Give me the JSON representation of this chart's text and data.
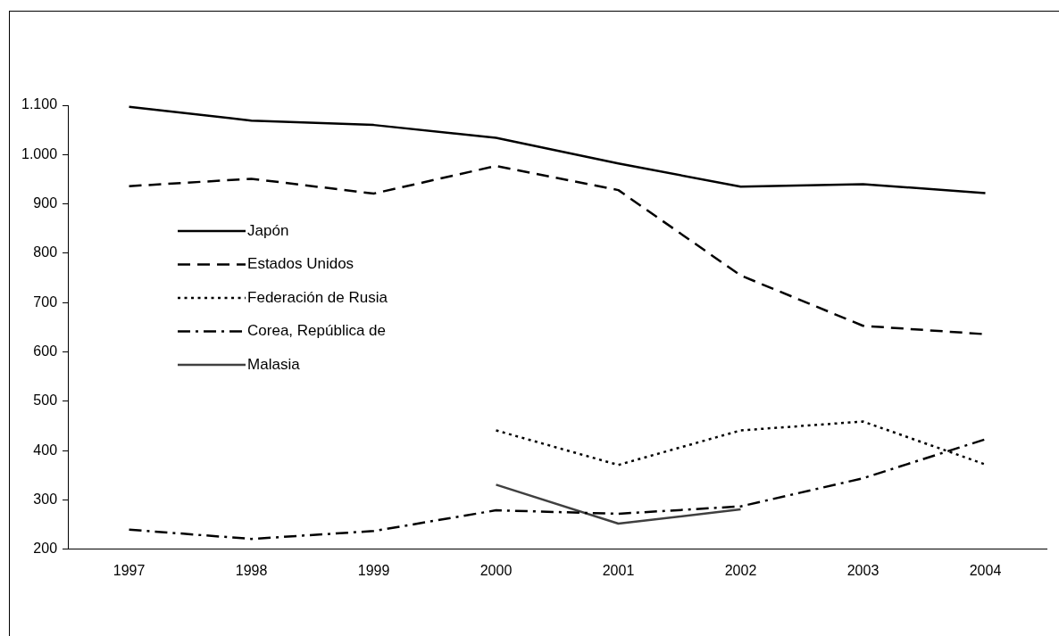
{
  "chart_data": {
    "type": "line",
    "categories": [
      "1997",
      "1998",
      "1999",
      "2000",
      "2001",
      "2002",
      "2003",
      "2004"
    ],
    "ylim": [
      200,
      1100
    ],
    "yticks": [
      {
        "value": 200,
        "label": "200"
      },
      {
        "value": 300,
        "label": "300"
      },
      {
        "value": 400,
        "label": "400"
      },
      {
        "value": 500,
        "label": "500"
      },
      {
        "value": 600,
        "label": "600"
      },
      {
        "value": 700,
        "label": "700"
      },
      {
        "value": 800,
        "label": "800"
      },
      {
        "value": 900,
        "label": "900"
      },
      {
        "value": 1000,
        "label": "1.000"
      },
      {
        "value": 1100,
        "label": "1.100"
      }
    ],
    "grid": false,
    "legend": "left",
    "marker": "none",
    "series": [
      {
        "name": "Japón",
        "color": "#000000",
        "line_style": "solid",
        "values": [
          1097,
          1069,
          1060,
          1034,
          982,
          935,
          940,
          922
        ]
      },
      {
        "name": "Estados Unidos",
        "color": "#000000",
        "line_style": "dashed",
        "values": [
          936,
          951,
          921,
          977,
          928,
          755,
          653,
          636
        ]
      },
      {
        "name": "Federación de Rusia",
        "color": "#000000",
        "line_style": "dotted",
        "values": [
          null,
          null,
          null,
          441,
          371,
          441,
          459,
          372
        ]
      },
      {
        "name": "Corea, República de",
        "color": "#000000",
        "line_style": "dashdot",
        "values": [
          240,
          221,
          237,
          279,
          272,
          287,
          344,
          423
        ]
      },
      {
        "name": "Malasia",
        "color": "#404040",
        "line_style": "solid",
        "values": [
          null,
          null,
          null,
          331,
          252,
          281,
          null,
          null
        ]
      }
    ]
  }
}
